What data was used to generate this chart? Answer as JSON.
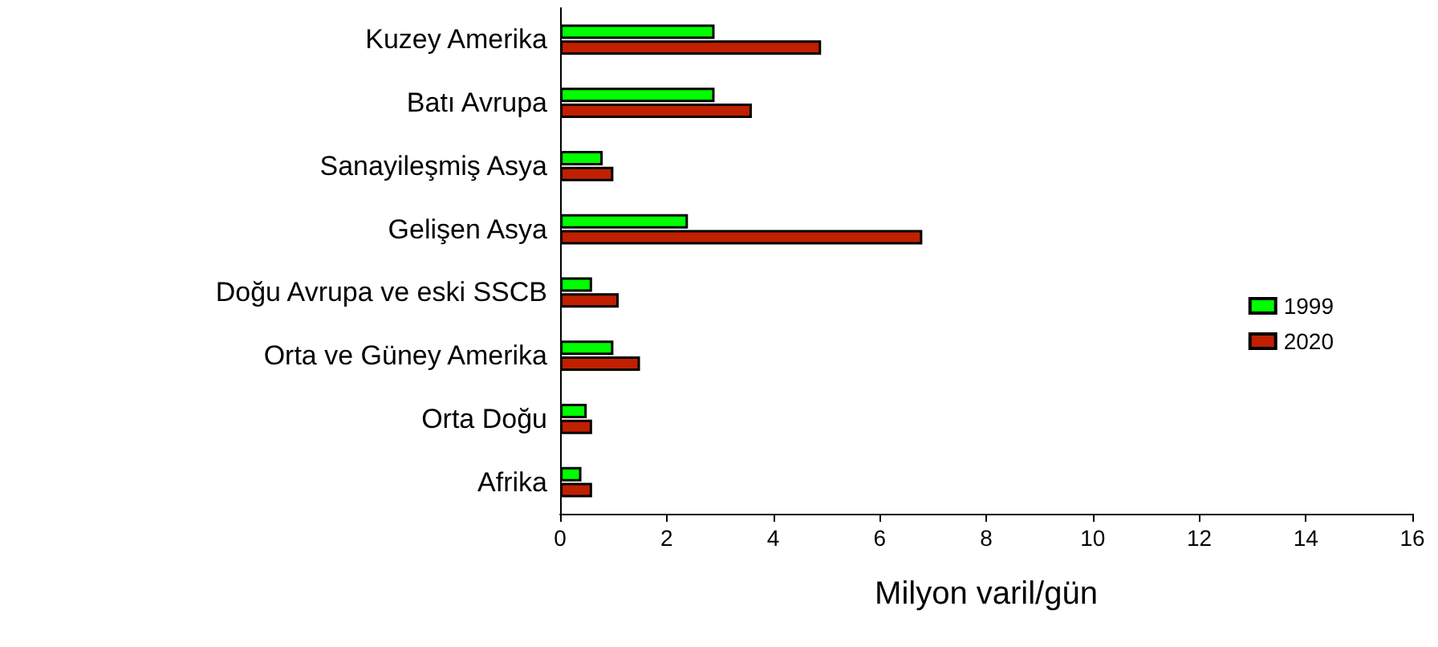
{
  "chart_data": {
    "type": "bar",
    "orientation": "horizontal",
    "xlabel": "Milyon varil/gün",
    "categories": [
      "Kuzey Amerika",
      "Batı Avrupa",
      "Sanayileşmiş Asya",
      "Gelişen Asya",
      "Doğu Avrupa ve eski SSCB",
      "Orta ve Güney Amerika",
      "Orta Doğu",
      "Afrika"
    ],
    "series": [
      {
        "name": "1999",
        "color": "#00ff00",
        "values": [
          2.9,
          2.9,
          0.8,
          2.4,
          0.6,
          1.0,
          0.5,
          0.4
        ]
      },
      {
        "name": "2020",
        "color": "#c02000",
        "values": [
          4.9,
          3.6,
          1.0,
          6.8,
          1.1,
          1.5,
          0.6,
          0.6
        ]
      }
    ],
    "xlim": [
      0,
      16
    ],
    "xticks": [
      0,
      2,
      4,
      6,
      8,
      10,
      12,
      14,
      16
    ],
    "grid": false,
    "legend": "right"
  }
}
